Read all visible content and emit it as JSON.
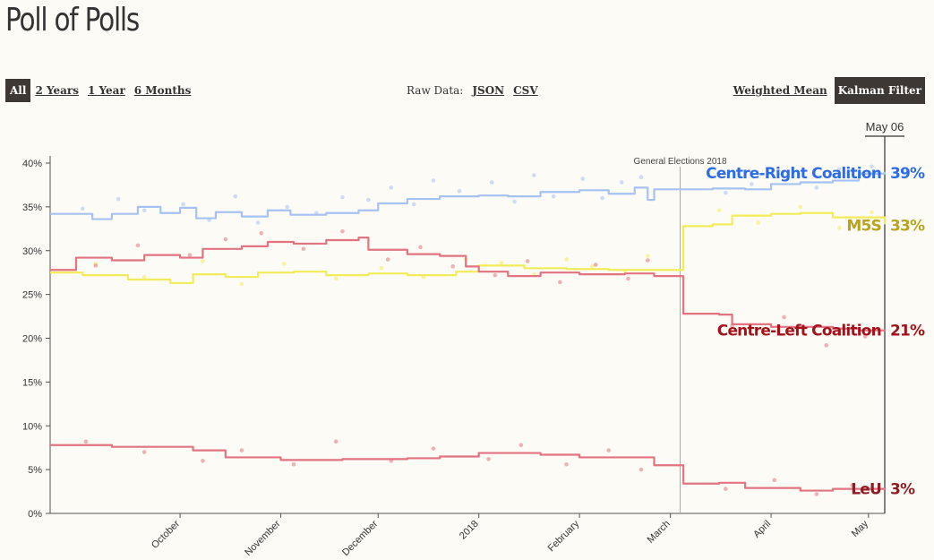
{
  "title": "Poll of Polls",
  "range_tabs": [
    "All",
    "2 Years",
    "1 Year",
    "6 Months"
  ],
  "active_range": "All",
  "raw_data": {
    "label": "Raw Data:",
    "json": "JSON",
    "csv": "CSV"
  },
  "method_tabs": [
    "Weighted Mean",
    "Kalman Filter"
  ],
  "active_method": "Kalman Filter",
  "chart_data": {
    "type": "line",
    "title": "Poll of Polls",
    "xlabel": "",
    "ylabel": "",
    "ylim": [
      0,
      40
    ],
    "x_range": [
      "2017-08-22",
      "2018-05-06"
    ],
    "y_ticks": [
      "0%",
      "5%",
      "10%",
      "15%",
      "20%",
      "25%",
      "30%",
      "35%",
      "40%"
    ],
    "x_ticks": [
      {
        "label": "October",
        "date": "2017-10-01"
      },
      {
        "label": "November",
        "date": "2017-11-01"
      },
      {
        "label": "December",
        "date": "2017-12-01"
      },
      {
        "label": "2018",
        "date": "2018-01-01"
      },
      {
        "label": "February",
        "date": "2018-02-01"
      },
      {
        "label": "March",
        "date": "2018-03-01"
      },
      {
        "label": "April",
        "date": "2018-04-01"
      },
      {
        "label": "May",
        "date": "2018-05-01"
      }
    ],
    "annotation": {
      "label": "General Elections 2018",
      "date": "2018-03-04"
    },
    "current_date_label": "May 06",
    "grid": false,
    "series": [
      {
        "name": "Centre-Right Coalition",
        "final_label": "39%",
        "color": "#2c6ce8",
        "line_color": "#a6c2f2",
        "points": [
          [
            "2017-08-22",
            34.2
          ],
          [
            "2017-08-29",
            34.2
          ],
          [
            "2017-09-04",
            33.6
          ],
          [
            "2017-09-10",
            34.2
          ],
          [
            "2017-09-18",
            35.0
          ],
          [
            "2017-09-25",
            34.3
          ],
          [
            "2017-10-01",
            34.9
          ],
          [
            "2017-10-06",
            33.7
          ],
          [
            "2017-10-12",
            34.4
          ],
          [
            "2017-10-20",
            33.9
          ],
          [
            "2017-10-28",
            34.6
          ],
          [
            "2017-11-04",
            34.1
          ],
          [
            "2017-11-15",
            34.3
          ],
          [
            "2017-11-25",
            34.6
          ],
          [
            "2017-12-01",
            35.4
          ],
          [
            "2017-12-10",
            35.9
          ],
          [
            "2017-12-20",
            36.2
          ],
          [
            "2018-01-01",
            36.3
          ],
          [
            "2018-01-10",
            36.2
          ],
          [
            "2018-01-20",
            36.7
          ],
          [
            "2018-02-01",
            36.9
          ],
          [
            "2018-02-10",
            36.5
          ],
          [
            "2018-02-18",
            37.2
          ],
          [
            "2018-02-22",
            35.8
          ],
          [
            "2018-02-24",
            37.0
          ],
          [
            "2018-03-04",
            37.0
          ],
          [
            "2018-03-14",
            37.1
          ],
          [
            "2018-03-24",
            37.0
          ],
          [
            "2018-04-01",
            37.6
          ],
          [
            "2018-04-10",
            37.8
          ],
          [
            "2018-04-20",
            38.0
          ],
          [
            "2018-04-28",
            38.8
          ],
          [
            "2018-05-06",
            39.0
          ]
        ],
        "polls": [
          [
            "2017-09-01",
            34.8
          ],
          [
            "2017-09-12",
            35.9
          ],
          [
            "2017-09-20",
            34.6
          ],
          [
            "2017-10-02",
            35.3
          ],
          [
            "2017-10-10",
            33.5
          ],
          [
            "2017-10-18",
            36.2
          ],
          [
            "2017-10-25",
            33.2
          ],
          [
            "2017-11-03",
            35.0
          ],
          [
            "2017-11-12",
            34.3
          ],
          [
            "2017-11-20",
            36.1
          ],
          [
            "2017-11-28",
            35.8
          ],
          [
            "2017-12-05",
            37.2
          ],
          [
            "2017-12-12",
            35.3
          ],
          [
            "2017-12-18",
            38.0
          ],
          [
            "2017-12-26",
            36.8
          ],
          [
            "2018-01-05",
            37.8
          ],
          [
            "2018-01-12",
            35.6
          ],
          [
            "2018-01-18",
            38.6
          ],
          [
            "2018-01-24",
            36.2
          ],
          [
            "2018-02-02",
            38.2
          ],
          [
            "2018-02-08",
            36.0
          ],
          [
            "2018-02-14",
            37.8
          ],
          [
            "2018-02-20",
            38.4
          ],
          [
            "2018-03-18",
            36.6
          ],
          [
            "2018-03-26",
            37.6
          ],
          [
            "2018-04-06",
            38.4
          ],
          [
            "2018-04-15",
            37.2
          ],
          [
            "2018-04-22",
            39.3
          ],
          [
            "2018-05-02",
            39.6
          ]
        ]
      },
      {
        "name": "M5S",
        "final_label": "33%",
        "color": "#b8a41e",
        "line_color": "#f3ec5a",
        "points": [
          [
            "2017-08-22",
            27.5
          ],
          [
            "2017-09-01",
            27.2
          ],
          [
            "2017-09-15",
            26.7
          ],
          [
            "2017-09-28",
            26.3
          ],
          [
            "2017-10-05",
            27.3
          ],
          [
            "2017-10-15",
            27.0
          ],
          [
            "2017-10-25",
            27.5
          ],
          [
            "2017-11-05",
            27.6
          ],
          [
            "2017-11-15",
            27.2
          ],
          [
            "2017-11-28",
            27.4
          ],
          [
            "2017-12-10",
            27.2
          ],
          [
            "2017-12-25",
            27.6
          ],
          [
            "2018-01-01",
            28.3
          ],
          [
            "2018-01-15",
            28.0
          ],
          [
            "2018-01-28",
            27.9
          ],
          [
            "2018-02-10",
            27.8
          ],
          [
            "2018-02-24",
            27.8
          ],
          [
            "2018-03-04",
            27.8
          ],
          [
            "2018-03-05",
            32.8
          ],
          [
            "2018-03-14",
            33.0
          ],
          [
            "2018-03-20",
            34.0
          ],
          [
            "2018-04-01",
            34.2
          ],
          [
            "2018-04-10",
            34.3
          ],
          [
            "2018-04-20",
            33.8
          ],
          [
            "2018-05-06",
            33.0
          ]
        ],
        "polls": [
          [
            "2017-09-05",
            28.5
          ],
          [
            "2017-09-20",
            27.0
          ],
          [
            "2017-10-08",
            28.8
          ],
          [
            "2017-10-20",
            26.2
          ],
          [
            "2017-11-02",
            28.5
          ],
          [
            "2017-11-18",
            26.8
          ],
          [
            "2017-12-02",
            28.0
          ],
          [
            "2017-12-15",
            27.0
          ],
          [
            "2017-12-28",
            29.0
          ],
          [
            "2018-01-08",
            28.6
          ],
          [
            "2018-01-18",
            27.3
          ],
          [
            "2018-01-28",
            29.0
          ],
          [
            "2018-02-05",
            28.2
          ],
          [
            "2018-02-15",
            27.5
          ],
          [
            "2018-02-22",
            29.4
          ],
          [
            "2018-03-16",
            34.6
          ],
          [
            "2018-03-28",
            33.2
          ],
          [
            "2018-04-10",
            35.0
          ],
          [
            "2018-04-22",
            32.6
          ],
          [
            "2018-05-02",
            34.4
          ]
        ]
      },
      {
        "name": "Centre-Left Coalition",
        "final_label": "21%",
        "color": "#a3121b",
        "line_color": "#e17480",
        "points": [
          [
            "2017-08-22",
            27.8
          ],
          [
            "2017-08-29",
            27.8
          ],
          [
            "2017-08-30",
            29.2
          ],
          [
            "2017-09-10",
            28.9
          ],
          [
            "2017-09-20",
            29.5
          ],
          [
            "2017-10-01",
            29.2
          ],
          [
            "2017-10-08",
            30.2
          ],
          [
            "2017-10-20",
            30.5
          ],
          [
            "2017-10-28",
            31.0
          ],
          [
            "2017-11-05",
            30.8
          ],
          [
            "2017-11-15",
            31.2
          ],
          [
            "2017-11-25",
            31.5
          ],
          [
            "2017-11-28",
            30.1
          ],
          [
            "2017-12-10",
            29.6
          ],
          [
            "2017-12-20",
            29.4
          ],
          [
            "2017-12-28",
            28.2
          ],
          [
            "2018-01-01",
            27.6
          ],
          [
            "2018-01-10",
            27.1
          ],
          [
            "2018-01-20",
            27.5
          ],
          [
            "2018-02-01",
            27.3
          ],
          [
            "2018-02-15",
            27.4
          ],
          [
            "2018-02-24",
            27.1
          ],
          [
            "2018-03-04",
            27.1
          ],
          [
            "2018-03-05",
            22.8
          ],
          [
            "2018-03-16",
            22.7
          ],
          [
            "2018-03-20",
            21.6
          ],
          [
            "2018-04-01",
            21.3
          ],
          [
            "2018-04-20",
            21.1
          ],
          [
            "2018-04-28",
            20.9
          ],
          [
            "2018-05-06",
            21.0
          ]
        ],
        "polls": [
          [
            "2017-09-05",
            28.3
          ],
          [
            "2017-09-18",
            30.6
          ],
          [
            "2017-10-04",
            29.5
          ],
          [
            "2017-10-15",
            31.3
          ],
          [
            "2017-10-26",
            32.0
          ],
          [
            "2017-11-08",
            30.2
          ],
          [
            "2017-11-20",
            32.2
          ],
          [
            "2017-12-04",
            29.0
          ],
          [
            "2017-12-14",
            30.4
          ],
          [
            "2017-12-24",
            28.2
          ],
          [
            "2018-01-06",
            27.2
          ],
          [
            "2018-01-16",
            28.8
          ],
          [
            "2018-01-26",
            26.4
          ],
          [
            "2018-02-06",
            28.4
          ],
          [
            "2018-02-16",
            26.8
          ],
          [
            "2018-02-22",
            28.9
          ],
          [
            "2018-03-20",
            21.4
          ],
          [
            "2018-04-05",
            22.4
          ],
          [
            "2018-04-18",
            19.2
          ],
          [
            "2018-04-30",
            20.2
          ]
        ]
      },
      {
        "name": "LeU",
        "final_label": "3%",
        "color": "#8f1c25",
        "line_color": "#e17480",
        "points": [
          [
            "2017-08-22",
            7.8
          ],
          [
            "2017-09-10",
            7.6
          ],
          [
            "2017-09-25",
            7.6
          ],
          [
            "2017-10-05",
            7.2
          ],
          [
            "2017-10-15",
            6.4
          ],
          [
            "2017-11-01",
            6.1
          ],
          [
            "2017-11-20",
            6.2
          ],
          [
            "2017-12-10",
            6.3
          ],
          [
            "2017-12-20",
            6.5
          ],
          [
            "2018-01-01",
            6.9
          ],
          [
            "2018-01-20",
            6.7
          ],
          [
            "2018-02-01",
            6.4
          ],
          [
            "2018-02-24",
            5.5
          ],
          [
            "2018-03-04",
            5.5
          ],
          [
            "2018-03-05",
            3.4
          ],
          [
            "2018-03-16",
            3.5
          ],
          [
            "2018-03-24",
            2.9
          ],
          [
            "2018-04-10",
            2.6
          ],
          [
            "2018-04-20",
            2.8
          ],
          [
            "2018-05-06",
            2.9
          ]
        ],
        "polls": [
          [
            "2017-09-02",
            8.2
          ],
          [
            "2017-09-20",
            7.0
          ],
          [
            "2017-10-08",
            6.0
          ],
          [
            "2017-10-20",
            7.2
          ],
          [
            "2017-11-05",
            5.6
          ],
          [
            "2017-11-18",
            8.2
          ],
          [
            "2017-12-05",
            6.0
          ],
          [
            "2017-12-18",
            7.4
          ],
          [
            "2018-01-04",
            6.2
          ],
          [
            "2018-01-14",
            7.8
          ],
          [
            "2018-01-28",
            5.6
          ],
          [
            "2018-02-10",
            7.2
          ],
          [
            "2018-02-20",
            5.0
          ],
          [
            "2018-03-18",
            2.8
          ],
          [
            "2018-04-02",
            3.8
          ],
          [
            "2018-04-15",
            2.2
          ],
          [
            "2018-04-26",
            3.2
          ]
        ]
      }
    ]
  }
}
